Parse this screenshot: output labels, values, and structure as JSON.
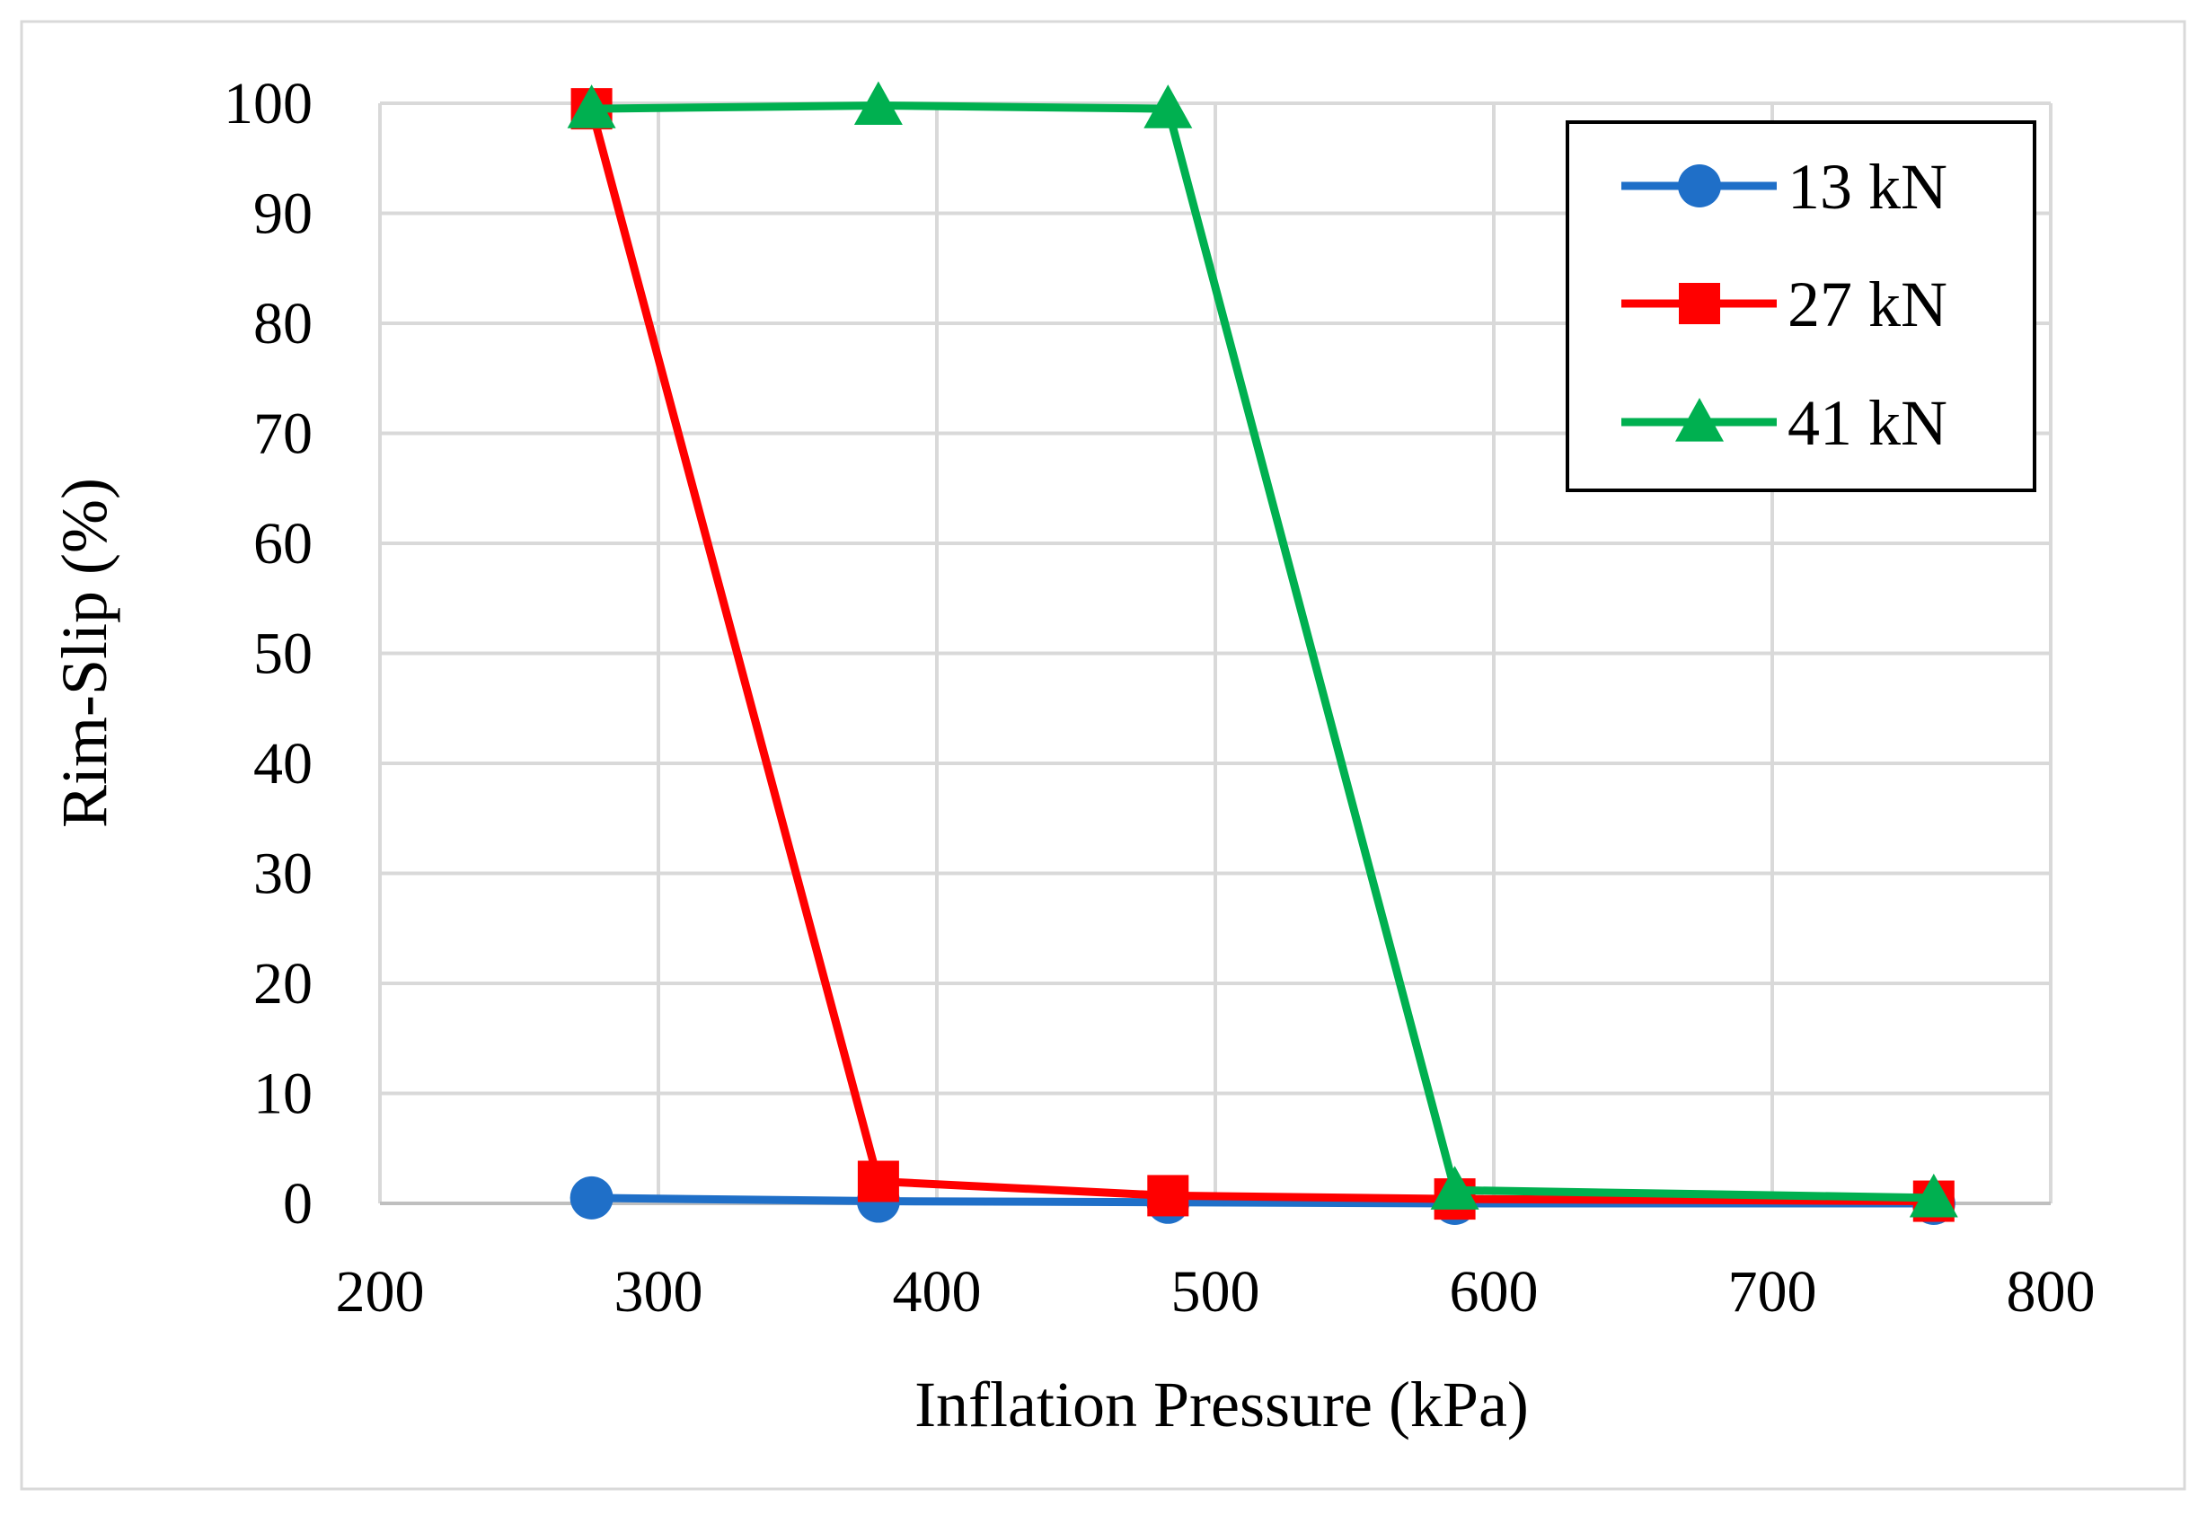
{
  "chart_data": {
    "type": "line",
    "title": "",
    "xlabel": "Inflation Pressure (kPa)",
    "ylabel": "Rim-Slip (%)",
    "xlim": [
      200,
      800
    ],
    "ylim": [
      0,
      100
    ],
    "xticks": [
      200,
      300,
      400,
      500,
      600,
      700,
      800
    ],
    "yticks": [
      0,
      10,
      20,
      30,
      40,
      50,
      60,
      70,
      80,
      90,
      100
    ],
    "grid": true,
    "legend_position": "top-right",
    "series": [
      {
        "name": "13 kN",
        "marker": "circle",
        "color": "#1f6fc8",
        "x": [
          276,
          379,
          483,
          586,
          758
        ],
        "y": [
          0.5,
          0.2,
          0.1,
          0.0,
          0.0
        ]
      },
      {
        "name": "27 kN",
        "marker": "square",
        "color": "#ff0000",
        "x": [
          276,
          379,
          483,
          586,
          758
        ],
        "y": [
          99.5,
          2.0,
          0.7,
          0.4,
          0.2
        ]
      },
      {
        "name": "41 kN",
        "marker": "triangle",
        "color": "#00b050",
        "x": [
          276,
          379,
          483,
          586,
          758
        ],
        "y": [
          99.5,
          99.8,
          99.5,
          1.2,
          0.5
        ]
      }
    ]
  }
}
